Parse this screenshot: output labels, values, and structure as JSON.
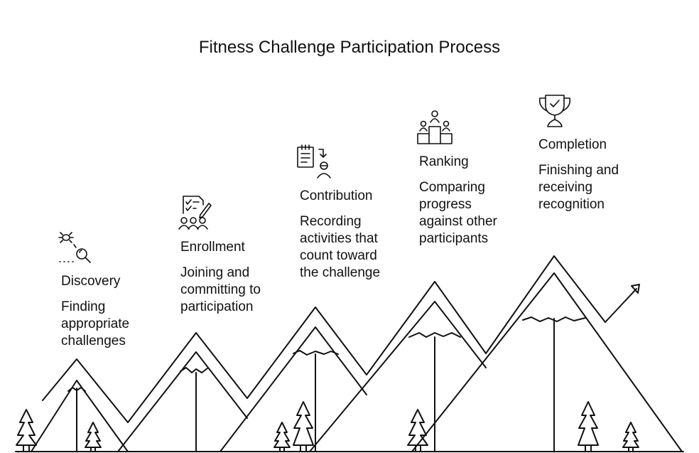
{
  "title": "Fitness Challenge Participation Process",
  "stages": [
    {
      "label": "Discovery",
      "description": "Finding appropriate challenges",
      "icon": "search-with-bug-icon"
    },
    {
      "label": "Enrollment",
      "description": "Joining and committing to participation",
      "icon": "checklist-with-people-icon"
    },
    {
      "label": "Contribution",
      "description": "Recording activities that count toward the challenge",
      "icon": "clipboard-user-icon"
    },
    {
      "label": "Ranking",
      "description": "Comparing progress against other participants",
      "icon": "podium-icon"
    },
    {
      "label": "Completion",
      "description": "Finishing and receiving recognition",
      "icon": "trophy-icon"
    }
  ],
  "colors": {
    "stroke": "#111111",
    "background": "#ffffff"
  }
}
